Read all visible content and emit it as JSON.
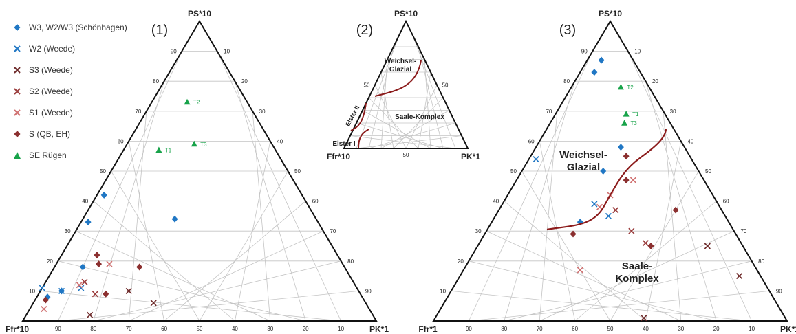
{
  "legend": [
    {
      "label": "W3, W2/W3 (Schönhagen)",
      "marker": "diamond",
      "color": "#2077c4"
    },
    {
      "label": "W2 (Weede)",
      "marker": "cross",
      "color": "#2077c4"
    },
    {
      "label": "S3 (Weede)",
      "marker": "cross",
      "color": "#6e2a2a"
    },
    {
      "label": "S2 (Weede)",
      "marker": "cross",
      "color": "#9a3c3c"
    },
    {
      "label": "S1 (Weede)",
      "marker": "cross",
      "color": "#d07070"
    },
    {
      "label": "S (QB, EH)",
      "marker": "diamond",
      "color": "#8b2f2f"
    },
    {
      "label": "SE Rügen",
      "marker": "triangle",
      "color": "#18a34a"
    }
  ],
  "chart_data": [
    {
      "type": "scatter",
      "subtype": "ternary",
      "panel_label": "(1)",
      "apex_labels": {
        "top": "PS*10",
        "left": "Ffr*10",
        "right": "PK*1"
      },
      "ticks": [
        "10",
        "20",
        "30",
        "40",
        "50",
        "60",
        "70",
        "80",
        "90"
      ],
      "grid": true,
      "series": [
        {
          "name": "W3, W2/W3 (Schönhagen)",
          "points": [
            {
              "ps": 42,
              "ffr": 56
            },
            {
              "ps": 33,
              "ffr": 65
            },
            {
              "ps": 34,
              "ffr": 40
            },
            {
              "ps": 18,
              "ffr": 74
            },
            {
              "ps": 10,
              "ffr": 84
            },
            {
              "ps": 8,
              "ffr": 89
            }
          ]
        },
        {
          "name": "W2 (Weede)",
          "points": [
            {
              "ps": 11,
              "ffr": 89
            },
            {
              "ps": 10,
              "ffr": 84
            },
            {
              "ps": 11,
              "ffr": 78
            }
          ]
        },
        {
          "name": "S3 (Weede)",
          "points": [
            {
              "ps": 2,
              "ffr": 80
            },
            {
              "ps": 6,
              "ffr": 60
            },
            {
              "ps": 10,
              "ffr": 65
            }
          ]
        },
        {
          "name": "S2 (Weede)",
          "points": [
            {
              "ps": 9,
              "ffr": 75
            },
            {
              "ps": 13,
              "ffr": 76
            }
          ]
        },
        {
          "name": "S1 (Weede)",
          "points": [
            {
              "ps": 4,
              "ffr": 92
            },
            {
              "ps": 12,
              "ffr": 78
            },
            {
              "ps": 19,
              "ffr": 66
            }
          ]
        },
        {
          "name": "S (QB, EH)",
          "points": [
            {
              "ps": 7,
              "ffr": 90
            },
            {
              "ps": 22,
              "ffr": 68
            },
            {
              "ps": 19,
              "ffr": 69
            },
            {
              "ps": 9,
              "ffr": 72
            },
            {
              "ps": 18,
              "ffr": 58
            }
          ]
        },
        {
          "name": "SE Rügen",
          "points": [
            {
              "ps": 73,
              "ffr": 17,
              "label": "T2"
            },
            {
              "ps": 59,
              "ffr": 22,
              "label": "T3"
            },
            {
              "ps": 57,
              "ffr": 33,
              "label": "T1"
            }
          ]
        }
      ]
    },
    {
      "type": "scatter",
      "subtype": "ternary",
      "panel_label": "(2)",
      "apex_labels": {
        "top": "PS*10",
        "left": "Ffr*10",
        "right": "PK*1"
      },
      "ticks": [
        "50",
        "50",
        "50"
      ],
      "grid": true,
      "fields": [
        "Weichsel-",
        "Glazial",
        "Saale-Komplex",
        "Elster II",
        "Elster I"
      ]
    },
    {
      "type": "scatter",
      "subtype": "ternary",
      "panel_label": "(3)",
      "apex_labels": {
        "top": "PS*10",
        "left": "Ffr*1",
        "right": "PK*1"
      },
      "ticks": [
        "10",
        "20",
        "30",
        "40",
        "50",
        "60",
        "70",
        "80",
        "90"
      ],
      "grid": true,
      "fields": [
        "Weichsel-",
        "Glazial",
        "Saale-",
        "Komplex"
      ],
      "series": [
        {
          "name": "W3, W2/W3 (Schönhagen)",
          "points": [
            {
              "ps": 87,
              "ffr": 9
            },
            {
              "ps": 83,
              "ffr": 13
            },
            {
              "ps": 58,
              "ffr": 18
            },
            {
              "ps": 50,
              "ffr": 27
            },
            {
              "ps": 33,
              "ffr": 42
            }
          ]
        },
        {
          "name": "W2 (Weede)",
          "points": [
            {
              "ps": 54,
              "ffr": 44
            },
            {
              "ps": 39,
              "ffr": 35
            },
            {
              "ps": 35,
              "ffr": 33
            }
          ]
        },
        {
          "name": "S3 (Weede)",
          "points": [
            {
              "ps": 1,
              "ffr": 40
            },
            {
              "ps": 25,
              "ffr": 10
            },
            {
              "ps": 15,
              "ffr": 6
            }
          ]
        },
        {
          "name": "S2 (Weede)",
          "points": [
            {
              "ps": 37,
              "ffr": 30
            },
            {
              "ps": 30,
              "ffr": 29
            },
            {
              "ps": 26,
              "ffr": 27
            }
          ]
        },
        {
          "name": "S1 (Weede)",
          "points": [
            {
              "ps": 47,
              "ffr": 20
            },
            {
              "ps": 42,
              "ffr": 29
            },
            {
              "ps": 17,
              "ffr": 50
            },
            {
              "ps": 38,
              "ffr": 34
            }
          ]
        },
        {
          "name": "S (QB, EH)",
          "points": [
            {
              "ps": 55,
              "ffr": 18
            },
            {
              "ps": 47,
              "ffr": 22
            },
            {
              "ps": 37,
              "ffr": 13
            },
            {
              "ps": 29,
              "ffr": 46
            },
            {
              "ps": 25,
              "ffr": 26
            }
          ]
        },
        {
          "name": "SE Rügen",
          "points": [
            {
              "ps": 78,
              "ffr": 8,
              "label": "T2"
            },
            {
              "ps": 69,
              "ffr": 11,
              "label": "T1"
            },
            {
              "ps": 66,
              "ffr": 13,
              "label": "T3"
            }
          ]
        }
      ]
    }
  ]
}
